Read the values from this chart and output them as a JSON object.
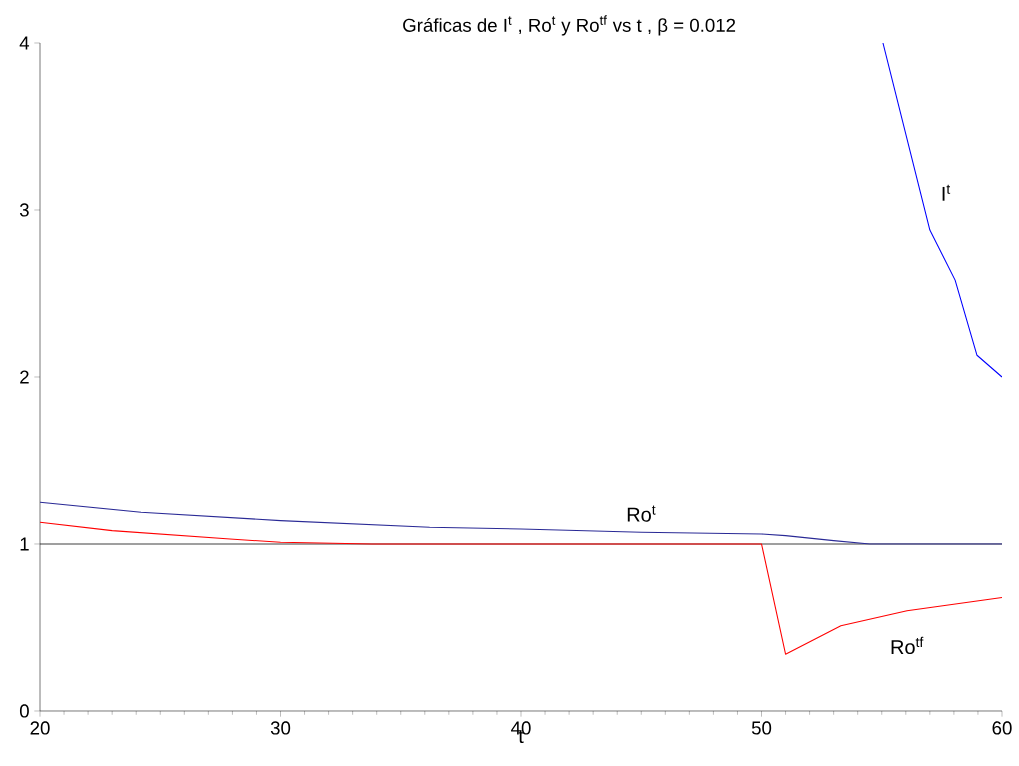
{
  "chart_data": {
    "type": "line",
    "title": "Gráficas de I$^{t}$ , Ro$^{t}$ y Ro$^{tf}$ vs t , β = 0.012",
    "xlabel": "t",
    "xlim": [
      20,
      60
    ],
    "ylim": [
      0,
      4
    ],
    "xticks": [
      20,
      30,
      40,
      50,
      60
    ],
    "yticks": [
      0,
      1,
      2,
      3,
      4
    ],
    "grid": false,
    "marker": "none",
    "line_style": "solid",
    "series": [
      {
        "name": "I$^{t}$",
        "color": "#0000ff",
        "x": [
          55.05,
          57.0,
          58.05,
          58.96,
          60
        ],
        "values": [
          4.0,
          2.88,
          2.58,
          2.13,
          2.0
        ]
      },
      {
        "name": "Ro$^{t}$",
        "color": "#2a2a96",
        "x": [
          20,
          24.2,
          30,
          36.2,
          40,
          45,
          50,
          51,
          53,
          54.5,
          60
        ],
        "values": [
          1.25,
          1.19,
          1.14,
          1.1,
          1.09,
          1.07,
          1.06,
          1.05,
          1.02,
          1.0,
          1.0
        ]
      },
      {
        "name": "Ro$^{tf}$",
        "color": "#ff0000",
        "x": [
          20,
          23,
          27.9,
          30,
          33.8,
          50,
          51,
          53.3,
          56.05,
          60
        ],
        "values": [
          1.13,
          1.08,
          1.03,
          1.01,
          1.0,
          1.0,
          0.34,
          0.51,
          0.6,
          0.68
        ]
      }
    ],
    "ref_lines": [
      {
        "axis": "y",
        "value": 1,
        "color": "#000000"
      }
    ]
  }
}
